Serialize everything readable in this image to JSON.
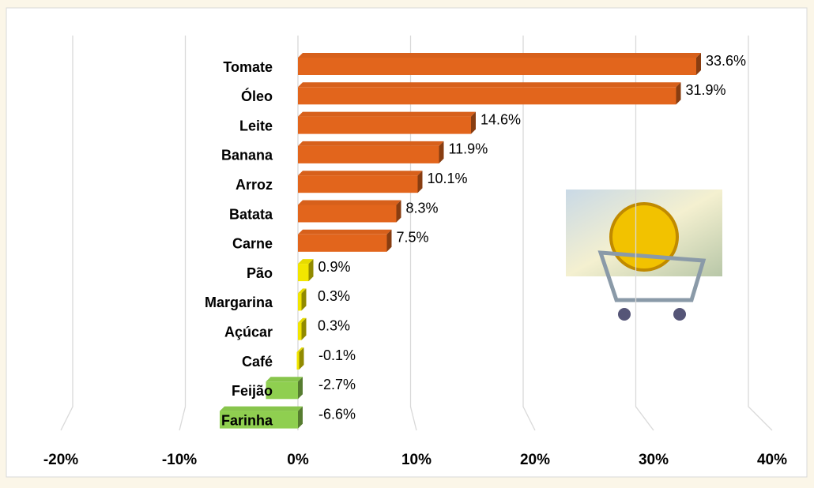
{
  "chart_data": {
    "type": "bar",
    "orientation": "horizontal",
    "categories": [
      "Tomate",
      "Óleo",
      "Leite",
      "Banana",
      "Arroz",
      "Batata",
      "Carne",
      "Pão",
      "Margarina",
      "Açúcar",
      "Café",
      "Feijão",
      "Farinha"
    ],
    "values": [
      33.6,
      31.9,
      14.6,
      11.9,
      10.1,
      8.3,
      7.5,
      0.9,
      0.3,
      0.3,
      -0.1,
      -2.7,
      -6.6
    ],
    "value_labels": [
      "33.6%",
      "31.9%",
      "14.6%",
      "11.9%",
      "10.1%",
      "8.3%",
      "7.5%",
      "0.9%",
      "0.3%",
      "0.3%",
      "-0.1%",
      "-2.7%",
      "-6.6%"
    ],
    "colors": [
      "#e2651c",
      "#e2651c",
      "#e2651c",
      "#e2651c",
      "#e2651c",
      "#e2651c",
      "#e2651c",
      "#f2e600",
      "#f2e600",
      "#f2e600",
      "#f2e600",
      "#8fcf50",
      "#8fcf50"
    ],
    "xlim": [
      -20,
      40
    ],
    "xticks": [
      {
        "value": -20,
        "label": "-20%"
      },
      {
        "value": -10,
        "label": "-10%"
      },
      {
        "value": 0,
        "label": "0%"
      },
      {
        "value": 10,
        "label": "10%"
      },
      {
        "value": 20,
        "label": "20%"
      },
      {
        "value": 30,
        "label": "30%"
      },
      {
        "value": 40,
        "label": "40%"
      }
    ],
    "grid": true
  }
}
